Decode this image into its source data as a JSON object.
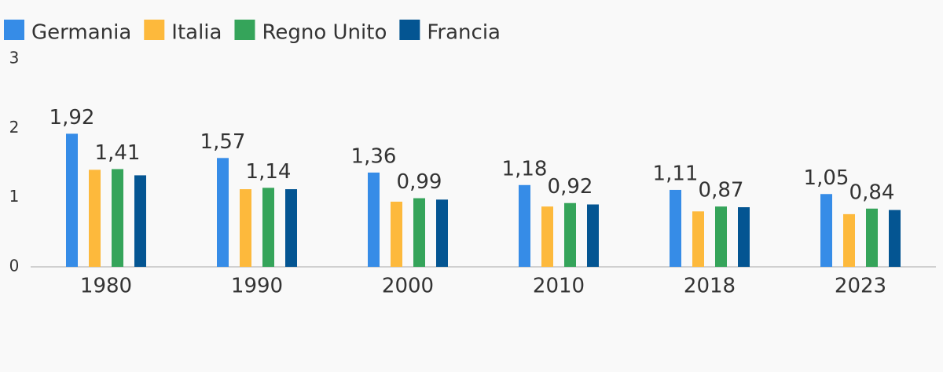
{
  "chart_data": {
    "type": "bar",
    "categories": [
      "1980",
      "1990",
      "2000",
      "2010",
      "2018",
      "2023"
    ],
    "series": [
      {
        "name": "Germania",
        "color": "#368ce7",
        "values": [
          1.92,
          1.57,
          1.36,
          1.18,
          1.11,
          1.05
        ],
        "value_labels": [
          "1,92",
          "1,57",
          "1,36",
          "1,18",
          "1,11",
          "1,05"
        ]
      },
      {
        "name": "Italia",
        "color": "#fdb93c",
        "values": [
          1.4,
          1.12,
          0.94,
          0.87,
          0.8,
          0.76
        ]
      },
      {
        "name": "Regno Unito",
        "color": "#35a45a",
        "values": [
          1.41,
          1.14,
          0.99,
          0.92,
          0.87,
          0.84
        ],
        "value_labels": [
          "1,41",
          "1,14",
          "0,99",
          "0,92",
          "0,87",
          "0,84"
        ]
      },
      {
        "name": "Francia",
        "color": "#045592",
        "values": [
          1.32,
          1.12,
          0.97,
          0.9,
          0.86,
          0.82
        ]
      }
    ],
    "ylim": [
      0,
      3
    ],
    "yticks": [
      0,
      1,
      2,
      3
    ],
    "legend": "top-left"
  }
}
